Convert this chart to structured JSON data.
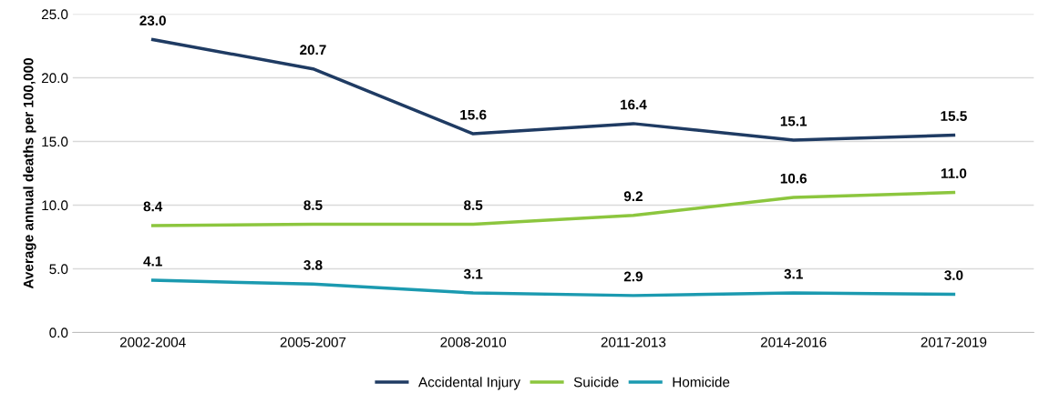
{
  "chart_data": {
    "type": "line",
    "ylabel": "Average annual deaths per 100,000",
    "categories": [
      "2002-2004",
      "2005-2007",
      "2008-2010",
      "2011-2013",
      "2014-2016",
      "2017-2019"
    ],
    "series": [
      {
        "name": "Accidental Injury",
        "color": "#1f3b63",
        "values": [
          23.0,
          20.7,
          15.6,
          16.4,
          15.1,
          15.5
        ],
        "value_labels": [
          "23.0",
          "20.7",
          "15.6",
          "16.4",
          "15.1",
          "15.5"
        ]
      },
      {
        "name": "Suicide",
        "color": "#8cc63e",
        "values": [
          8.4,
          8.5,
          8.5,
          9.2,
          10.6,
          11.0
        ],
        "value_labels": [
          "8.4",
          "8.5",
          "8.5",
          "9.2",
          "10.6",
          "11.0"
        ]
      },
      {
        "name": "Homicide",
        "color": "#1b9ab0",
        "values": [
          4.1,
          3.8,
          3.1,
          2.9,
          3.1,
          3.0
        ],
        "value_labels": [
          "4.1",
          "3.8",
          "3.1",
          "2.9",
          "3.1",
          "3.0"
        ]
      }
    ],
    "ylim": [
      0,
      25
    ],
    "yticks": [
      {
        "value": 0,
        "label": "0.0"
      },
      {
        "value": 5,
        "label": "5.0"
      },
      {
        "value": 10,
        "label": "10.0"
      },
      {
        "value": 15,
        "label": "15.0"
      },
      {
        "value": 20,
        "label": "20.0"
      },
      {
        "value": 25,
        "label": "25.0"
      }
    ],
    "grid": "y",
    "legend": "bottom",
    "marker": "none",
    "line_style": "solid"
  }
}
